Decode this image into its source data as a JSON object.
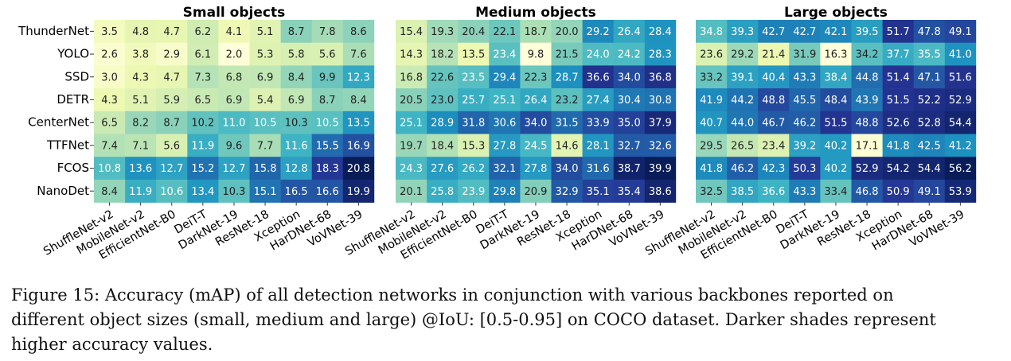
{
  "chart_data": [
    {
      "type": "heatmap",
      "title": "Small objects",
      "y_categories": [
        "ThunderNet",
        "YOLO",
        "SSD",
        "DETR",
        "CenterNet",
        "TTFNet",
        "FCOS",
        "NanoDet"
      ],
      "categories": [
        "ShuffleNet-v2",
        "MobileNet-v2",
        "EfficientNet-B0",
        "DeiT-T",
        "DarkNet-19",
        "ResNet-18",
        "Xception",
        "HarDNet-68",
        "VoVNet-39"
      ],
      "colors": [
        "#ffffd9",
        "#edf8b1",
        "#c7e9b4",
        "#7fcdbb",
        "#41b6c4",
        "#1d91c0",
        "#225ea8",
        "#253494",
        "#081d58"
      ],
      "values": [
        [
          3.5,
          4.8,
          4.7,
          6.2,
          4.1,
          5.1,
          8.7,
          7.8,
          8.6
        ],
        [
          2.6,
          3.8,
          2.9,
          6.1,
          2.0,
          5.3,
          5.8,
          5.6,
          7.6
        ],
        [
          3.0,
          4.3,
          4.7,
          7.3,
          6.8,
          6.9,
          8.4,
          9.9,
          12.3
        ],
        [
          4.3,
          5.1,
          5.9,
          6.5,
          6.9,
          5.4,
          6.9,
          8.7,
          8.4
        ],
        [
          6.5,
          8.2,
          8.7,
          10.2,
          11.0,
          10.5,
          10.3,
          10.5,
          13.5
        ],
        [
          7.4,
          7.1,
          5.6,
          11.9,
          9.6,
          7.7,
          11.6,
          15.5,
          16.9
        ],
        [
          10.8,
          13.6,
          12.7,
          15.2,
          12.7,
          15.8,
          12.8,
          18.3,
          20.8
        ],
        [
          8.4,
          11.9,
          10.6,
          13.4,
          10.3,
          15.1,
          16.5,
          16.6,
          19.9
        ]
      ],
      "value_labels": [
        [
          "3.5",
          "4.8",
          "4.7",
          "6.2",
          "4.1",
          "5.1",
          "8.7",
          "7.8",
          "8.6"
        ],
        [
          "2.6",
          "3.8",
          "2.9",
          "6.1",
          "2.0",
          "5.3",
          "5.8",
          "5.6",
          "7.6"
        ],
        [
          "3.0",
          "4.3",
          "4.7",
          "7.3",
          "6.8",
          "6.9",
          "8.4",
          "9.9",
          "12.3"
        ],
        [
          "4.3",
          "5.1",
          "5.9",
          "6.5",
          "6.9",
          "5.4",
          "6.9",
          "8.7",
          "8.4"
        ],
        [
          "6.5",
          "8.2",
          "8.7",
          "10.2",
          "11.0",
          "10.5",
          "10.3",
          "10.5",
          "13.5"
        ],
        [
          "7.4",
          "7.1",
          "5.6",
          "11.9",
          "9.6",
          "7.7",
          "11.6",
          "15.5",
          "16.9"
        ],
        [
          "10.8",
          "13.6",
          "12.7",
          "15.2",
          "12.7",
          "15.8",
          "12.8",
          "18.3",
          "20.8"
        ],
        [
          "8.4",
          "11.9",
          "10.6",
          "13.4",
          "10.3",
          "15.1",
          "16.5",
          "16.6",
          "19.9"
        ]
      ]
    },
    {
      "type": "heatmap",
      "title": "Medium objects",
      "categories": [
        "ShuffleNet-v2",
        "MobileNet-v2",
        "EfficientNet-B0",
        "DeiT-T",
        "DarkNet-19",
        "ResNet-18",
        "Xception",
        "HarDNet-68",
        "VoVNet-39"
      ],
      "colors": [
        "#ffffd9",
        "#edf8b1",
        "#c7e9b4",
        "#7fcdbb",
        "#41b6c4",
        "#1d91c0",
        "#225ea8",
        "#253494",
        "#081d58"
      ],
      "values": [
        [
          15.4,
          19.3,
          20.4,
          22.1,
          18.7,
          20.0,
          29.2,
          26.4,
          28.4
        ],
        [
          14.3,
          18.2,
          13.5,
          23.4,
          9.8,
          21.5,
          24.0,
          24.2,
          28.3
        ],
        [
          16.8,
          22.6,
          23.5,
          29.4,
          22.3,
          28.7,
          36.6,
          34.0,
          36.8
        ],
        [
          20.5,
          23.0,
          25.7,
          25.1,
          26.4,
          23.2,
          27.4,
          30.4,
          30.8
        ],
        [
          25.1,
          28.9,
          31.8,
          30.6,
          34.0,
          31.5,
          33.9,
          35.0,
          37.9
        ],
        [
          19.7,
          18.4,
          15.3,
          27.8,
          24.5,
          14.6,
          28.1,
          32.7,
          32.6
        ],
        [
          24.3,
          27.6,
          26.2,
          32.1,
          27.8,
          34.0,
          31.6,
          38.7,
          39.9
        ],
        [
          20.1,
          25.8,
          23.9,
          29.8,
          20.9,
          32.9,
          35.1,
          35.4,
          38.6
        ]
      ],
      "value_labels": [
        [
          "15.4",
          "19.3",
          "20.4",
          "22.1",
          "18.7",
          "20.0",
          "29.2",
          "26.4",
          "28.4"
        ],
        [
          "14.3",
          "18.2",
          "13.5",
          "23.4",
          "9.8",
          "21.5",
          "24.0",
          "24.2",
          "28.3"
        ],
        [
          "16.8",
          "22.6",
          "23.5",
          "29.4",
          "22.3",
          "28.7",
          "36.6",
          "34.0",
          "36.8"
        ],
        [
          "20.5",
          "23.0",
          "25.7",
          "25.1",
          "26.4",
          "23.2",
          "27.4",
          "30.4",
          "30.8"
        ],
        [
          "25.1",
          "28.9",
          "31.8",
          "30.6",
          "34.0",
          "31.5",
          "33.9",
          "35.0",
          "37.9"
        ],
        [
          "19.7",
          "18.4",
          "15.3",
          "27.8",
          "24.5",
          "14.6",
          "28.1",
          "32.7",
          "32.6"
        ],
        [
          "24.3",
          "27.6",
          "26.2",
          "32.1",
          "27.8",
          "34.0",
          "31.6",
          "38.7",
          "39.9"
        ],
        [
          "20.1",
          "25.8",
          "23.9",
          "29.8",
          "20.9",
          "32.9",
          "35.1",
          "35.4",
          "38.6"
        ]
      ]
    },
    {
      "type": "heatmap",
      "title": "Large objects",
      "categories": [
        "ShuffleNet-v2",
        "MobileNet-v2",
        "EfficientNet-B0",
        "DeiT-T",
        "DarkNet-19",
        "ResNet-18",
        "Xception",
        "HarDNet-68",
        "VoVNet-39"
      ],
      "colors": [
        "#ffffd9",
        "#edf8b1",
        "#c7e9b4",
        "#7fcdbb",
        "#41b6c4",
        "#1d91c0",
        "#225ea8",
        "#253494",
        "#081d58"
      ],
      "values": [
        [
          34.8,
          39.3,
          42.7,
          42.7,
          42.1,
          39.5,
          51.7,
          47.8,
          49.1
        ],
        [
          23.6,
          29.2,
          21.4,
          31.9,
          16.3,
          34.2,
          37.7,
          35.5,
          41.0
        ],
        [
          33.2,
          39.1,
          40.4,
          43.3,
          38.4,
          44.8,
          51.4,
          47.1,
          51.6
        ],
        [
          41.9,
          44.2,
          48.8,
          45.5,
          48.4,
          43.9,
          51.5,
          52.2,
          52.9
        ],
        [
          40.7,
          44.0,
          46.7,
          46.2,
          51.5,
          48.8,
          52.6,
          52.8,
          54.4
        ],
        [
          29.5,
          26.5,
          23.4,
          39.2,
          40.2,
          17.1,
          41.8,
          42.5,
          41.2
        ],
        [
          41.8,
          46.2,
          42.3,
          50.3,
          40.2,
          52.9,
          54.2,
          54.4,
          56.2
        ],
        [
          32.5,
          38.5,
          36.6,
          43.3,
          33.4,
          46.8,
          50.9,
          49.1,
          53.9
        ]
      ],
      "value_labels": [
        [
          "34.8",
          "39.3",
          "42.7",
          "42.7",
          "42.1",
          "39.5",
          "51.7",
          "47.8",
          "49.1"
        ],
        [
          "23.6",
          "29.2",
          "21.4",
          "31.9",
          "16.3",
          "34.2",
          "37.7",
          "35.5",
          "41.0"
        ],
        [
          "33.2",
          "39.1",
          "40.4",
          "43.3",
          "38.4",
          "44.8",
          "51.4",
          "47.1",
          "51.6"
        ],
        [
          "41.9",
          "44.2",
          "48.8",
          "45.5",
          "48.4",
          "43.9",
          "51.5",
          "52.2",
          "52.9"
        ],
        [
          "40.7",
          "44.0",
          "46.7",
          "46.2",
          "51.5",
          "48.8",
          "52.6",
          "52.8",
          "54.4"
        ],
        [
          "29.5",
          "26.5",
          "23.4",
          "39.2",
          "40.2",
          "17.1",
          "41.8",
          "42.5",
          "41.2"
        ],
        [
          "41.8",
          "46.2",
          "42.3",
          "50.3",
          "40.2",
          "52.9",
          "54.2",
          "54.4",
          "56.2"
        ],
        [
          "32.5",
          "38.5",
          "36.6",
          "43.3",
          "33.4",
          "46.8",
          "50.9",
          "49.1",
          "53.9"
        ]
      ]
    }
  ],
  "caption": [
    "Figure 15: Accuracy (mAP) of all detection networks in conjunction with various backbones reported on",
    "different object sizes (small, medium and large) @IoU: [0.5-0.95] on COCO dataset. Darker shades represent",
    "higher accuracy values."
  ]
}
